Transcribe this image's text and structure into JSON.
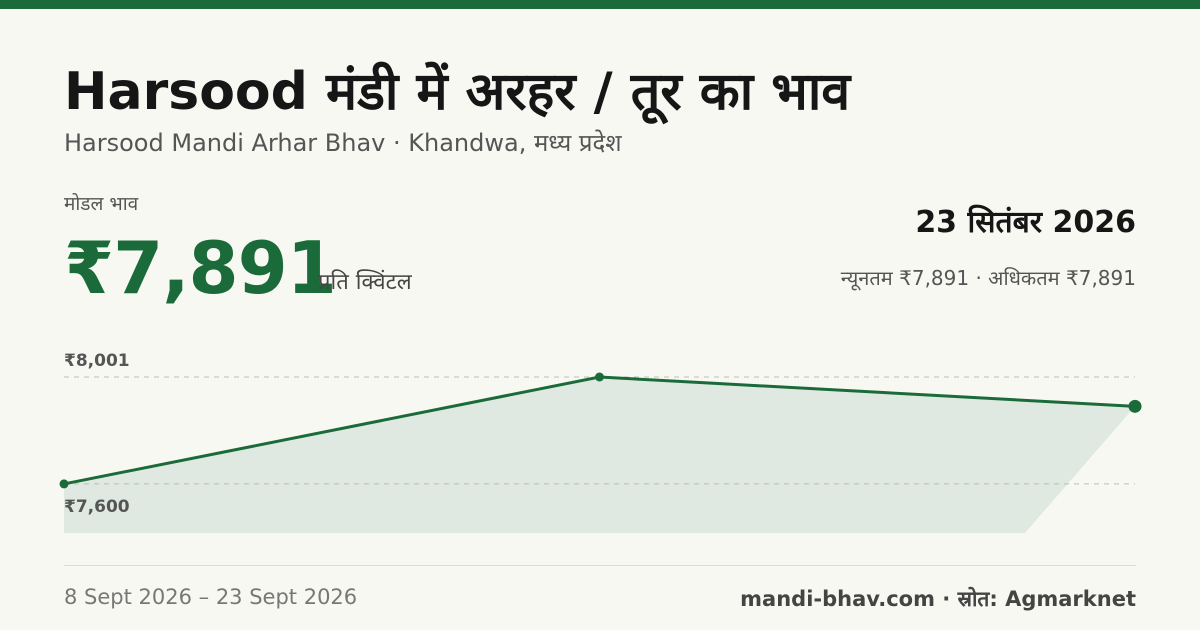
{
  "header": {
    "title": "Harsood मंडी में अरहर / तूर का भाव",
    "subtitle": "Harsood Mandi Arhar Bhav · Khandwa, मध्य प्रदेश"
  },
  "price": {
    "label": "मोडल भाव",
    "value": "₹7,891",
    "unit": "प्रति क्विंटल",
    "date": "23 सितंबर 2026",
    "range": "न्यूनतम ₹7,891 · अधिकतम ₹7,891"
  },
  "chart_data": {
    "type": "line",
    "categories": [
      null,
      null,
      null
    ],
    "values": [
      7600,
      8001,
      7891
    ],
    "color": "#1b6b3a",
    "area_color": "#dfe9e1",
    "ylim": [
      7416,
      8001
    ],
    "yticks": [
      {
        "value": 7600,
        "label": "₹7,600"
      },
      {
        "value": 8001,
        "label": "₹8,001"
      }
    ],
    "grid": true
  },
  "footer": {
    "date_range": "8 Sept 2026 – 23 Sept 2026",
    "source": "mandi-bhav.com · स्रोत: Agmarknet"
  }
}
